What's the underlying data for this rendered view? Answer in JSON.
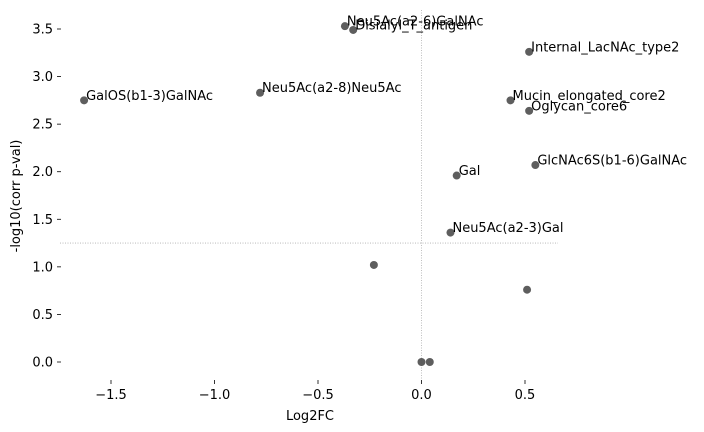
{
  "chart_data": {
    "type": "scatter",
    "title": "",
    "xlabel": "Log2FC",
    "ylabel": "-log10(corr p-val)",
    "xlim": [
      -1.75,
      0.65
    ],
    "ylim": [
      -0.1,
      3.7
    ],
    "xticks": [
      -1.5,
      -1.0,
      -0.5,
      0.0,
      0.5
    ],
    "xtick_labels": [
      "−1.5",
      "−1.0",
      "−0.5",
      "0.0",
      "0.5"
    ],
    "yticks": [
      0.0,
      0.5,
      1.0,
      1.5,
      2.0,
      2.5,
      3.0,
      3.5
    ],
    "ytick_labels": [
      "0.0",
      "0.5",
      "1.0",
      "1.5",
      "2.0",
      "2.5",
      "3.0",
      "3.5"
    ],
    "significance_threshold_y": 1.25,
    "fold_change_reference_x": 0.0,
    "point_color": "#555555",
    "grid": false,
    "points": [
      {
        "x": -0.37,
        "y": 3.53,
        "label": "Neu5Ac(a2-6)GalNAc"
      },
      {
        "x": -0.33,
        "y": 3.49,
        "label": "Disialyl_T_antigen"
      },
      {
        "x": 0.52,
        "y": 3.26,
        "label": "Internal_LacNAc_type2"
      },
      {
        "x": -1.63,
        "y": 2.75,
        "label": "GalOS(b1-3)GalNAc"
      },
      {
        "x": -0.78,
        "y": 2.83,
        "label": "Neu5Ac(a2-8)Neu5Ac"
      },
      {
        "x": 0.43,
        "y": 2.75,
        "label": "Mucin_elongated_core2"
      },
      {
        "x": 0.52,
        "y": 2.64,
        "label": "Oglycan_core6"
      },
      {
        "x": 0.55,
        "y": 2.07,
        "label": "GlcNAc6S(b1-6)GalNAc"
      },
      {
        "x": 0.17,
        "y": 1.96,
        "label": "Gal"
      },
      {
        "x": 0.14,
        "y": 1.36,
        "label": "Neu5Ac(a2-3)Gal"
      },
      {
        "x": -0.23,
        "y": 1.02,
        "label": ""
      },
      {
        "x": 0.51,
        "y": 0.76,
        "label": ""
      },
      {
        "x": 0.0,
        "y": 0.0,
        "label": ""
      },
      {
        "x": 0.04,
        "y": 0.0,
        "label": ""
      }
    ]
  }
}
